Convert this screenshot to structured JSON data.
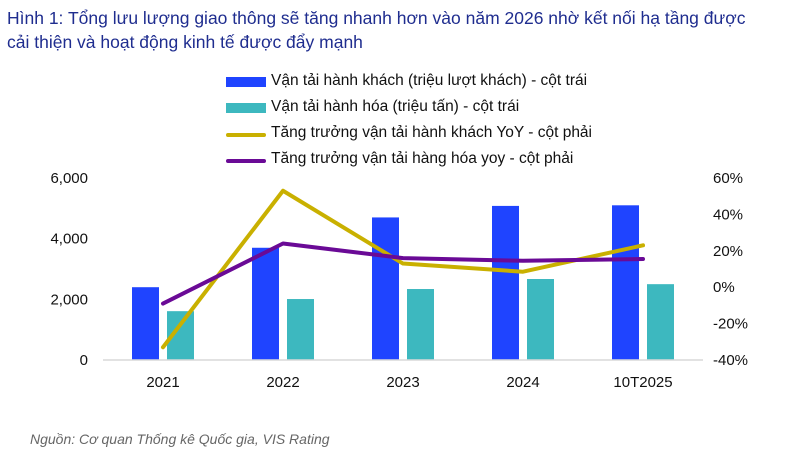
{
  "title": {
    "line1": "Hình 1: Tổng lưu lượng giao thông sẽ tăng nhanh hơn vào năm 2026 nhờ kết nối hạ tầng được",
    "line2": "cải thiện và hoạt động kinh tế được đẩy mạnh"
  },
  "source": "Nguồn: Cơ quan Thống kê Quốc gia, VIS Rating",
  "chart_data": {
    "type": "bar+line",
    "categories": [
      "2021",
      "2022",
      "2023",
      "2024",
      "10T2025"
    ],
    "left_axis": {
      "range": [
        0,
        6000
      ],
      "ticks": [
        0,
        2000,
        4000,
        6000
      ],
      "tick_labels": [
        "0",
        "2,000",
        "4,000",
        "6,000"
      ]
    },
    "right_axis": {
      "range": [
        -40,
        60
      ],
      "ticks": [
        -40,
        -20,
        0,
        20,
        40,
        60
      ],
      "tick_labels": [
        "-40%",
        "-20%",
        "0%",
        "20%",
        "40%",
        "60%"
      ]
    },
    "grid": false,
    "legend_position": "top",
    "series": [
      {
        "name": "Vận tải hành khách (triệu lượt khách) - cột trái",
        "kind": "bar",
        "axis": "left",
        "color": "#1f44ff",
        "values": [
          2400,
          3700,
          4700,
          5080,
          5100
        ]
      },
      {
        "name": "Vận tải hành hóa (triệu tấn) - cột trái",
        "kind": "bar",
        "axis": "left",
        "color": "#3db8bf",
        "values": [
          1610,
          2010,
          2340,
          2670,
          2500
        ]
      },
      {
        "name": "Tăng trưởng vận tải hành khách YoY - cột phải",
        "kind": "line",
        "axis": "right",
        "color": "#c9b000",
        "values": [
          -33,
          53,
          13,
          8.5,
          23
        ]
      },
      {
        "name": "Tăng trưởng vận tải hàng hóa yoy - cột phải",
        "kind": "line",
        "axis": "right",
        "color": "#6a0a96",
        "values": [
          -9,
          24,
          16,
          14.5,
          15.5
        ]
      }
    ]
  }
}
